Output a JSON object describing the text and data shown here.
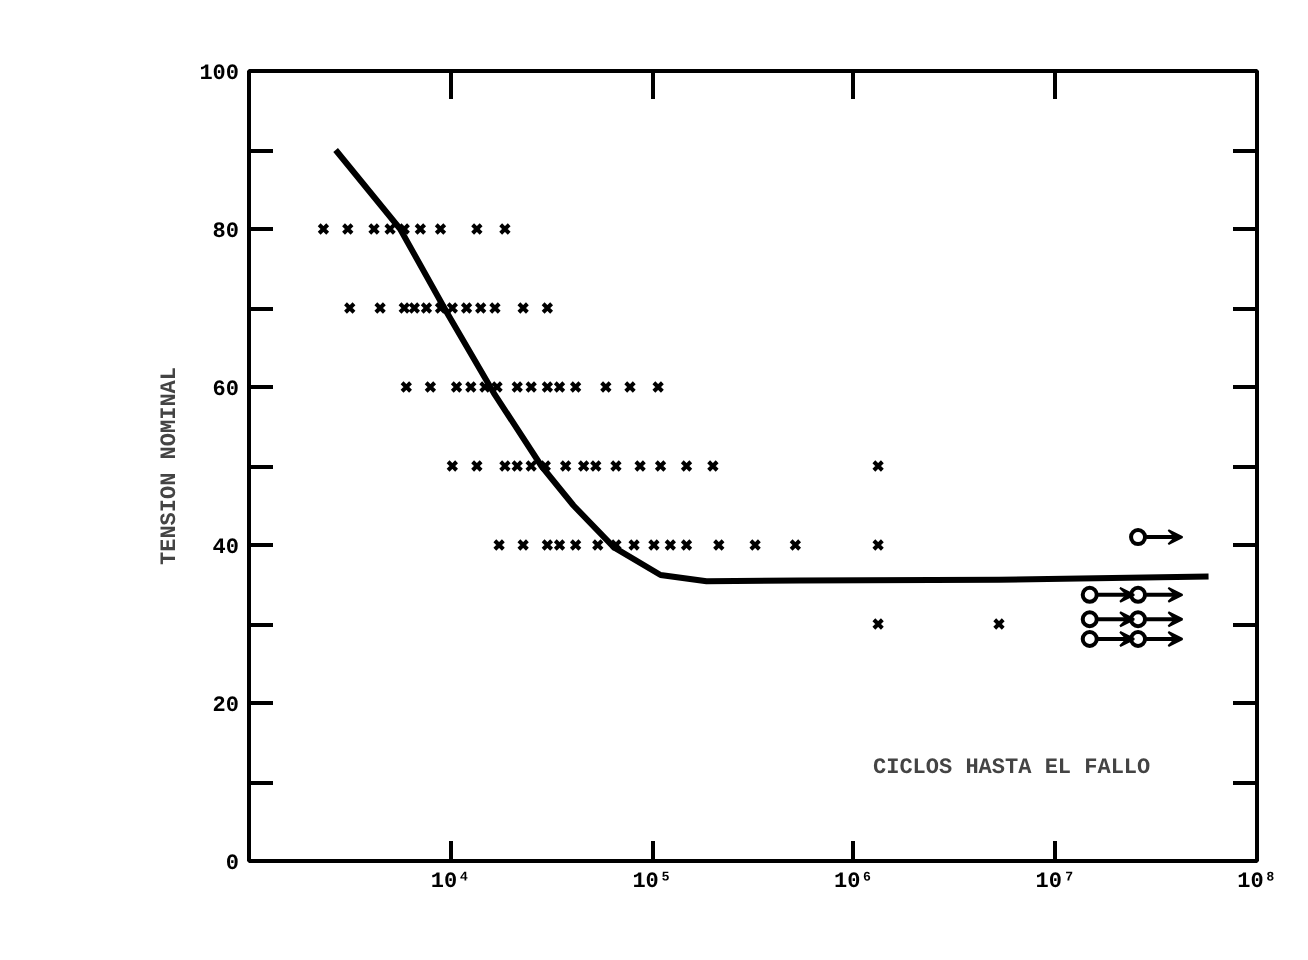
{
  "chart_data": {
    "type": "scatter",
    "xlabel": "CICLOS HASTA EL FALLO",
    "ylabel": "TENSION NOMINAL",
    "log": "x",
    "grid": false,
    "xlim": [
      1000,
      100000000
    ],
    "xticks": [
      {
        "value": 10000,
        "label": "10⁴"
      },
      {
        "value": 100000,
        "label": "10⁵"
      },
      {
        "value": 1000000,
        "label": "10⁶"
      },
      {
        "value": 10000000,
        "label": "10⁷"
      },
      {
        "value": 100000000,
        "label": "10⁸"
      }
    ],
    "ylim": [
      0,
      100
    ],
    "yticks": [
      0,
      {
        "value": 10,
        "label": null
      },
      20,
      {
        "value": 30,
        "label": null
      },
      40,
      {
        "value": 50,
        "label": null
      },
      60,
      {
        "value": 70,
        "label": null
      },
      80,
      {
        "value": 90,
        "label": null
      },
      100
    ],
    "series": [
      {
        "marker": "cross",
        "color": "#000000",
        "x": [
          2340,
          3090,
          4170,
          5010,
          5890,
          7080,
          8910,
          13500,
          18600,
          3160,
          4470,
          5890,
          6610,
          7590,
          8910,
          10200,
          12000,
          14100,
          16600,
          22900,
          30200,
          6030,
          7940,
          10700,
          12600,
          14800,
          17000,
          21400,
          25100,
          30200,
          34700,
          41700,
          58900,
          77600,
          107000,
          10200,
          13500,
          18600,
          21400,
          25100,
          29500,
          37200,
          45700,
          52500,
          66100,
          87100,
          110000,
          148000,
          200000,
          1320000,
          17400,
          22900,
          30200,
          34700,
          41700,
          53700,
          66100,
          81300,
          102000,
          123000,
          148000,
          214000,
          324000,
          513000,
          1320000,
          1320000,
          5250000
        ],
        "values": [
          80,
          80,
          80,
          80,
          80,
          80,
          80,
          80,
          80,
          70,
          70,
          70,
          70,
          70,
          70,
          70,
          70,
          70,
          70,
          70,
          70,
          60,
          60,
          60,
          60,
          60,
          60,
          60,
          60,
          60,
          60,
          60,
          60,
          60,
          60,
          50,
          50,
          50,
          50,
          50,
          50,
          50,
          50,
          50,
          50,
          50,
          50,
          50,
          50,
          50,
          40,
          40,
          40,
          40,
          40,
          40,
          40,
          40,
          40,
          40,
          40,
          40,
          40,
          40,
          40,
          30,
          30
        ]
      },
      {
        "marker": "circle",
        "color": "#000000",
        "x": [
          25700000,
          14800000,
          25700000,
          14800000,
          25700000,
          14800000,
          25700000
        ],
        "values": [
          41,
          33.7,
          33.7,
          30.6,
          30.6,
          28.1,
          28.1
        ]
      },
      {
        "type": "line",
        "marker": "none",
        "color": "#000000",
        "x": [
          2690,
          5620,
          9550,
          16600,
          28200,
          40700,
          64600,
          110000,
          186000,
          537000,
          5250000,
          57500000
        ],
        "values": [
          90,
          80,
          69.5,
          59,
          50,
          45,
          39.7,
          36.2,
          35.4,
          35.5,
          35.6,
          36
        ]
      }
    ]
  }
}
